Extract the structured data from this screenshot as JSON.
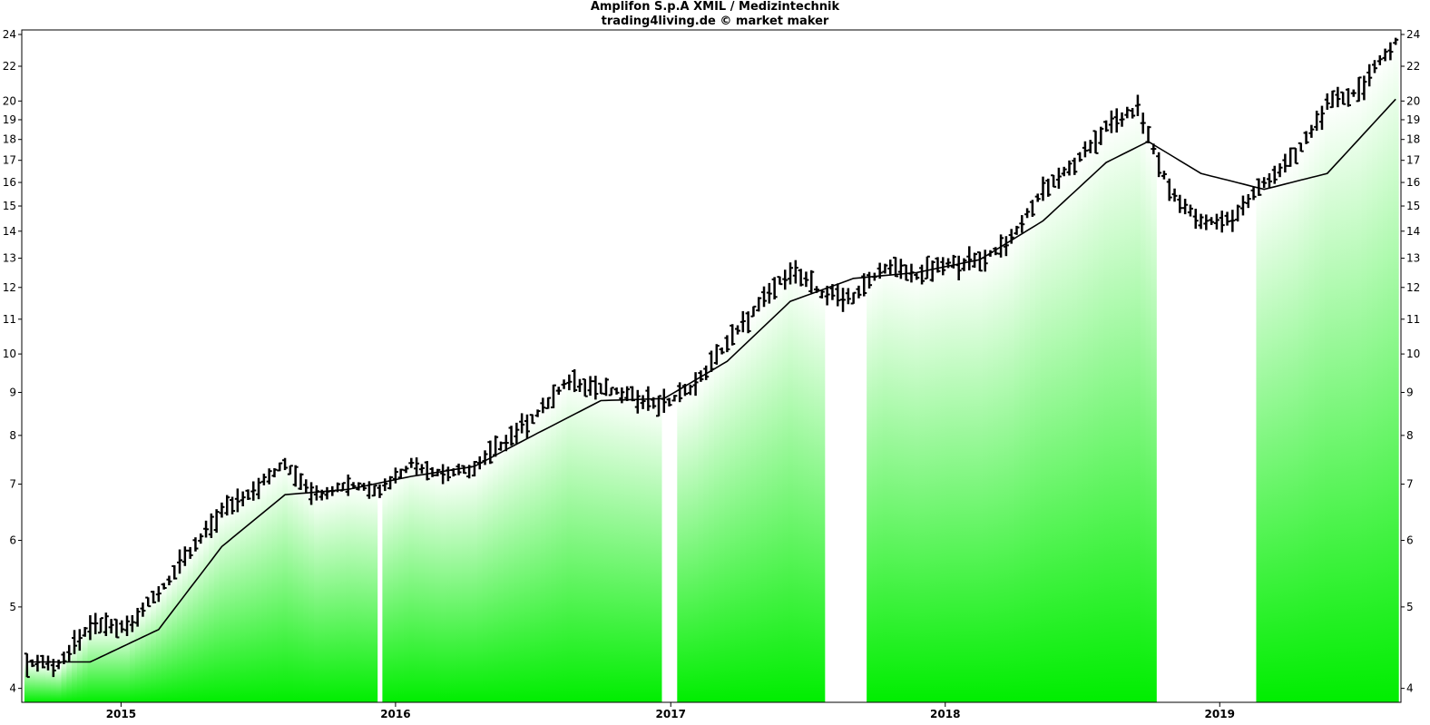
{
  "chart_data": {
    "type": "line",
    "title": "Amplifon S.p.A XMIL / Medizintechnik",
    "subtitle": "trading4living.de © market maker",
    "xlabel": "",
    "ylabel": "",
    "y_scale": "log",
    "ylim": [
      3.85,
      24.3
    ],
    "y_ticks": [
      4,
      5,
      6,
      7,
      8,
      9,
      10,
      11,
      12,
      13,
      14,
      15,
      16,
      17,
      18,
      19,
      20,
      22,
      24
    ],
    "x_ticks": [
      "2015",
      "2016",
      "2017",
      "2018",
      "2019"
    ],
    "xlim": [
      "2014-08-22",
      "2019-08-30"
    ],
    "grid": false,
    "legend": "none",
    "colors": {
      "price": "#000000",
      "moving_average": "#000000",
      "fill_strong": "#00ee00",
      "fill_light": "#ffffff"
    },
    "series": [
      {
        "kind": "ohlc-weekly",
        "x": [
          "2014-08-29",
          "2014-10-10",
          "2014-11-21",
          "2015-01-09",
          "2015-02-20",
          "2015-04-03",
          "2015-05-15",
          "2015-06-26",
          "2015-08-07",
          "2015-09-18",
          "2015-10-30",
          "2015-12-11",
          "2016-01-22",
          "2016-03-04",
          "2016-04-15",
          "2016-05-27",
          "2016-07-08",
          "2016-08-19",
          "2016-09-30",
          "2016-11-11",
          "2016-12-23",
          "2017-02-03",
          "2017-03-17",
          "2017-04-28",
          "2017-06-09",
          "2017-07-21",
          "2017-09-01",
          "2017-10-13",
          "2017-11-24",
          "2018-01-05",
          "2018-02-16",
          "2018-03-30",
          "2018-05-11",
          "2018-06-22",
          "2018-08-03",
          "2018-09-14",
          "2018-10-26",
          "2018-12-07",
          "2019-01-18",
          "2019-03-01",
          "2019-04-12",
          "2019-05-24",
          "2019-07-05",
          "2019-08-23"
        ],
        "values": [
          4.3,
          4.25,
          4.75,
          4.75,
          5.2,
          5.8,
          6.5,
          6.9,
          7.4,
          6.8,
          7.0,
          6.9,
          7.4,
          7.2,
          7.3,
          7.9,
          8.5,
          9.3,
          9.1,
          8.9,
          8.7,
          9.2,
          10.3,
          11.4,
          12.6,
          11.8,
          11.7,
          12.7,
          12.4,
          12.8,
          12.9,
          13.7,
          15.7,
          16.8,
          18.6,
          19.6,
          15.7,
          14.3,
          14.5,
          16.0,
          17.2,
          19.8,
          20.6,
          23.6
        ]
      },
      {
        "name": "",
        "kind": "moving-average",
        "x": [
          "2014-08-29",
          "2014-11-21",
          "2015-02-20",
          "2015-05-15",
          "2015-08-07",
          "2015-10-30",
          "2016-01-22",
          "2016-04-15",
          "2016-07-08",
          "2016-09-30",
          "2016-12-23",
          "2017-03-17",
          "2017-06-09",
          "2017-09-01",
          "2017-11-24",
          "2018-02-16",
          "2018-05-11",
          "2018-08-03",
          "2018-09-28",
          "2018-12-07",
          "2019-03-01",
          "2019-05-24",
          "2019-08-23"
        ],
        "values": [
          4.3,
          4.3,
          4.7,
          5.9,
          6.8,
          6.9,
          7.15,
          7.35,
          8.05,
          8.8,
          8.85,
          9.8,
          11.55,
          12.3,
          12.5,
          12.95,
          14.4,
          16.9,
          17.9,
          16.4,
          15.7,
          16.4,
          20.1
        ]
      }
    ]
  }
}
